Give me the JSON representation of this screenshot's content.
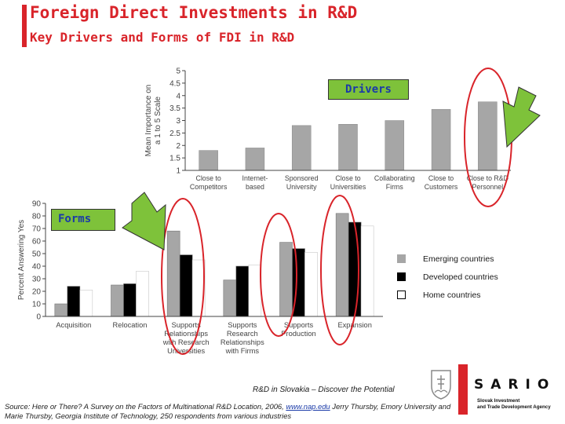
{
  "header": {
    "title": "Foreign Direct Investments in R&D",
    "subtitle": "Key Drivers and Forms of FDI in R&D"
  },
  "tags": {
    "drivers": "Drivers",
    "forms": "Forms"
  },
  "legend": {
    "items": [
      {
        "label": "Emerging countries",
        "color": "#a6a6a6"
      },
      {
        "label": "Developed countries",
        "color": "#000000"
      },
      {
        "label": "Home countries",
        "color": "#ffffff"
      }
    ]
  },
  "footer": {
    "tagline": "R&D in Slovakia – Discover the Potential",
    "source_pre": "Source: Here or There? A Survey on the Factors of Multinational R&D Location, 2006,",
    "source_link": "www.nap.edu",
    "source_post": "Jerry Thursby, Emory University and Marie Thursby, Georgia Institute of Technology, 250 respondents from various industries",
    "logo": "SARIO",
    "logo_sub_1": "Slovak Investment",
    "logo_sub_2": "and Trade Development Agency"
  },
  "colors": {
    "accent": "#d9242a",
    "arrow_green": "#7ec23a",
    "bar_gray": "#a6a6a6"
  },
  "chart_data": [
    {
      "type": "bar",
      "title": "Drivers",
      "ylabel": "Mean Importance on a 1 to 5 Scale",
      "ylim": [
        1,
        5
      ],
      "yticks": [
        "1",
        "1.5",
        "2",
        "2.5",
        "3",
        "3.5",
        "4",
        "4.5",
        "5"
      ],
      "categories": [
        [
          "Close to",
          "Competitors"
        ],
        [
          "Internet-",
          "based"
        ],
        [
          "Sponsored",
          "University"
        ],
        [
          "Close to",
          "Universities"
        ],
        [
          "Collaborating",
          "Firms"
        ],
        [
          "Close to",
          "Customers"
        ],
        [
          "Close to R&D",
          "Personnel"
        ]
      ],
      "values": [
        1.8,
        1.9,
        2.8,
        2.85,
        3.0,
        3.45,
        3.75
      ],
      "highlighted": [
        "Close to R&D Personnel"
      ]
    },
    {
      "type": "bar",
      "title": "Forms",
      "ylabel": "Percent Answering Yes",
      "ylim": [
        0,
        90
      ],
      "yticks": [
        "0",
        "10",
        "20",
        "30",
        "40",
        "50",
        "60",
        "70",
        "80",
        "90"
      ],
      "categories": [
        [
          "Acquisition"
        ],
        [
          "Relocation"
        ],
        [
          "Supports",
          "Relationships",
          "with Research",
          "Universities"
        ],
        [
          "Supports",
          "Research",
          "Relationships",
          "with Firms"
        ],
        [
          "Supports",
          "Production"
        ],
        [
          "Expansion"
        ]
      ],
      "series": [
        {
          "name": "Emerging countries",
          "values": [
            10,
            25,
            68,
            29,
            59,
            82
          ]
        },
        {
          "name": "Developed countries",
          "values": [
            24,
            26,
            49,
            40,
            54,
            75
          ]
        },
        {
          "name": "Home countries",
          "values": [
            21,
            36,
            45,
            41,
            51,
            72
          ]
        }
      ],
      "highlighted": [
        "Supports Relationships with Research Universities",
        "Supports Production",
        "Expansion"
      ]
    }
  ]
}
